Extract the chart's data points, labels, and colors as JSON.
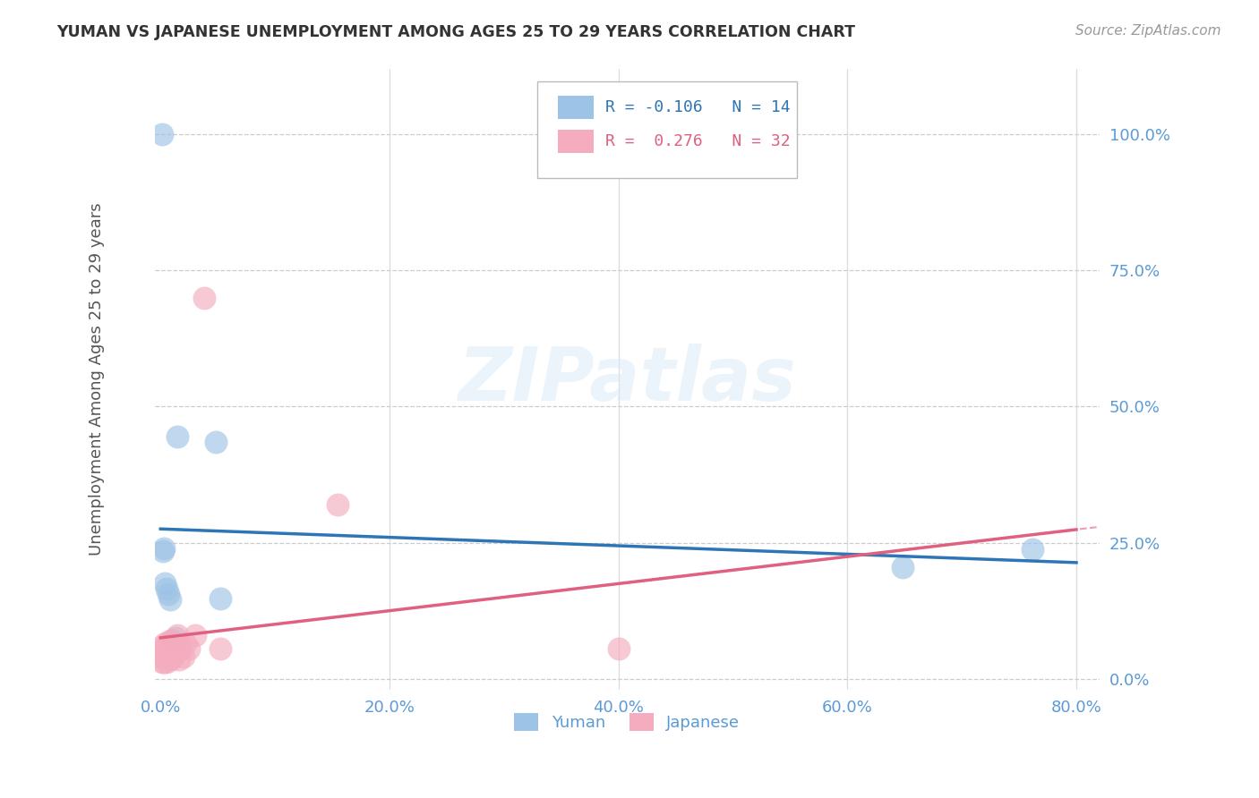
{
  "title": "YUMAN VS JAPANESE UNEMPLOYMENT AMONG AGES 25 TO 29 YEARS CORRELATION CHART",
  "source": "Source: ZipAtlas.com",
  "ylabel": "Unemployment Among Ages 25 to 29 years",
  "xlim": [
    -0.005,
    0.82
  ],
  "ylim": [
    -0.02,
    1.12
  ],
  "xticks": [
    0.0,
    0.2,
    0.4,
    0.6,
    0.8
  ],
  "yticks": [
    0.0,
    0.25,
    0.5,
    0.75,
    1.0
  ],
  "xtick_labels": [
    "0.0%",
    "20.0%",
    "40.0%",
    "60.0%",
    "80.0%"
  ],
  "ytick_labels": [
    "0.0%",
    "25.0%",
    "50.0%",
    "75.0%",
    "100.0%"
  ],
  "yuman_color": "#9DC3E6",
  "japanese_color": "#F4ACBE",
  "yuman_line_color": "#2E75B6",
  "japanese_line_color": "#E06080",
  "yuman_R": -0.106,
  "yuman_N": 14,
  "japanese_R": 0.276,
  "japanese_N": 32,
  "watermark_text": "ZIPatlas",
  "yuman_x": [
    0.001,
    0.002,
    0.003,
    0.004,
    0.005,
    0.007,
    0.008,
    0.01,
    0.013,
    0.015,
    0.048,
    0.052,
    0.648,
    0.762
  ],
  "yuman_y": [
    1.0,
    0.235,
    0.24,
    0.175,
    0.165,
    0.155,
    0.145,
    0.07,
    0.075,
    0.445,
    0.435,
    0.148,
    0.205,
    0.237
  ],
  "japanese_x": [
    0.001,
    0.001,
    0.002,
    0.002,
    0.003,
    0.003,
    0.004,
    0.004,
    0.005,
    0.005,
    0.006,
    0.006,
    0.007,
    0.007,
    0.008,
    0.009,
    0.01,
    0.011,
    0.012,
    0.013,
    0.014,
    0.015,
    0.016,
    0.018,
    0.02,
    0.022,
    0.025,
    0.03,
    0.038,
    0.052,
    0.155,
    0.4
  ],
  "japanese_y": [
    0.03,
    0.05,
    0.04,
    0.06,
    0.03,
    0.05,
    0.04,
    0.06,
    0.03,
    0.05,
    0.04,
    0.06,
    0.05,
    0.07,
    0.06,
    0.03,
    0.05,
    0.04,
    0.06,
    0.05,
    0.07,
    0.08,
    0.03,
    0.05,
    0.04,
    0.06,
    0.05,
    0.08,
    0.7,
    0.06,
    0.32,
    0.05
  ],
  "grid_color": "#CCCCCC",
  "background_color": "#FFFFFF",
  "title_color": "#333333",
  "tick_color": "#5B9BD5",
  "legend_box_color": "#DDDDDD"
}
